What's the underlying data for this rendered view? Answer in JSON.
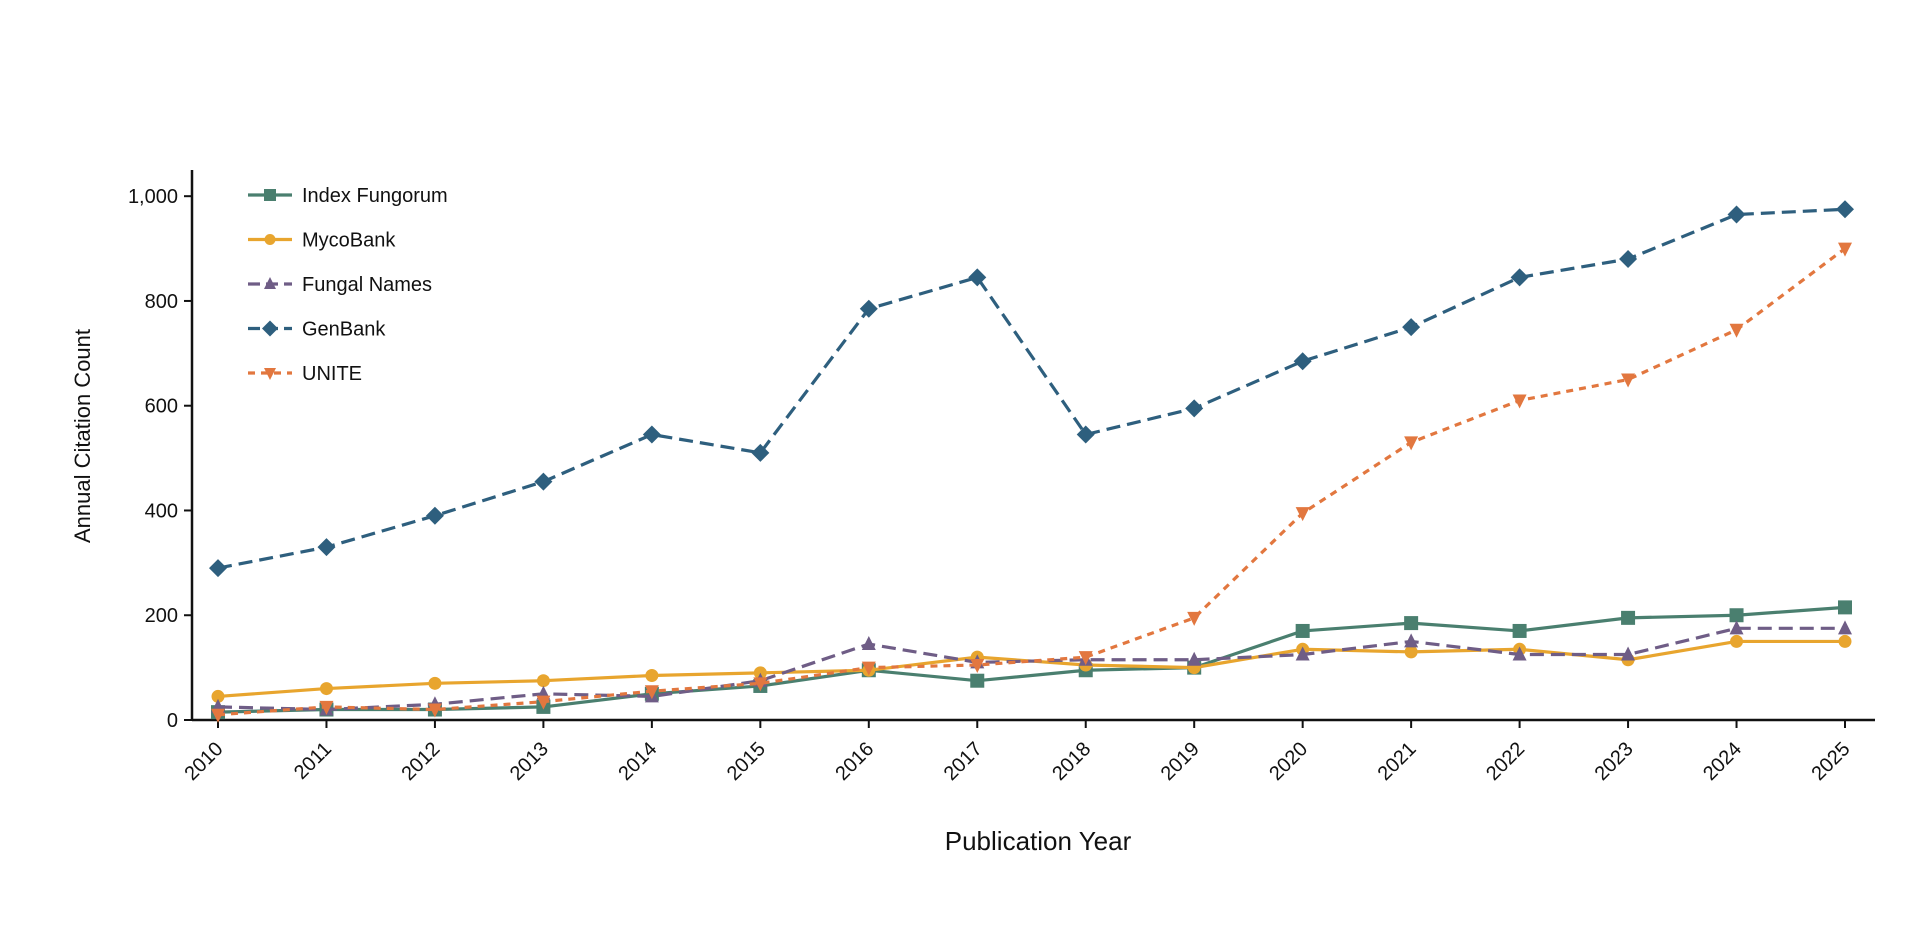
{
  "chart_data": {
    "type": "line",
    "title": "",
    "xlabel": "Publication Year",
    "ylabel": "Annual Citation Count",
    "x": [
      "2010",
      "2011",
      "2012",
      "2013",
      "2014",
      "2015",
      "2016",
      "2017",
      "2018",
      "2019",
      "2020",
      "2021",
      "2022",
      "2023",
      "2024",
      "2025"
    ],
    "ylim": [
      0,
      1050
    ],
    "yticks": [
      0,
      200,
      400,
      600,
      800,
      1000
    ],
    "ytick_labels": [
      "0",
      "200",
      "400",
      "600",
      "800",
      "1,000"
    ],
    "grid": false,
    "legend_position": "top-left",
    "series": [
      {
        "name": "Index Fungorum",
        "color": "#4a7f6f",
        "dash": "solid",
        "marker": "square",
        "values": [
          15,
          20,
          20,
          25,
          50,
          65,
          95,
          75,
          95,
          100,
          170,
          185,
          170,
          195,
          200,
          215
        ]
      },
      {
        "name": "MycoBank",
        "color": "#e8a52e",
        "dash": "solid",
        "marker": "circle",
        "values": [
          45,
          60,
          70,
          75,
          85,
          90,
          95,
          120,
          105,
          100,
          135,
          130,
          135,
          115,
          150,
          150
        ]
      },
      {
        "name": "Fungal Names",
        "color": "#6f5d86",
        "dash": "dashed",
        "marker": "triangle-up",
        "values": [
          25,
          20,
          30,
          50,
          45,
          75,
          145,
          110,
          115,
          115,
          125,
          150,
          125,
          125,
          175,
          175
        ]
      },
      {
        "name": "GenBank",
        "color": "#2e5f7e",
        "dash": "dashed",
        "marker": "diamond",
        "values": [
          290,
          330,
          390,
          455,
          545,
          510,
          785,
          845,
          545,
          595,
          685,
          750,
          845,
          880,
          965,
          975
        ]
      },
      {
        "name": "UNITE",
        "color": "#e2773f",
        "dash": "dotted",
        "marker": "triangle-down",
        "values": [
          10,
          25,
          20,
          35,
          55,
          70,
          100,
          105,
          120,
          195,
          395,
          530,
          610,
          650,
          745,
          900
        ]
      }
    ]
  }
}
